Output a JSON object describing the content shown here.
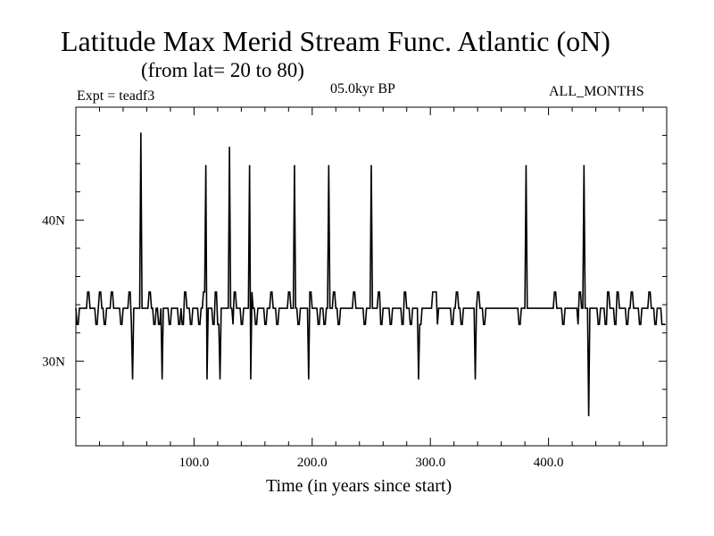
{
  "chart_data": {
    "type": "line",
    "title": "Latitude Max Merid Stream Func. Atlantic (oN)",
    "subtitle": "(from lat= 20 to 80)",
    "experiment": "Expt = teadf3",
    "period": "05.0kyr BP",
    "months": "ALL_MONTHS",
    "xlabel": "Time (in years since start)",
    "ylabel": "",
    "xlim": [
      0,
      500
    ],
    "ylim": [
      24.0,
      48.0
    ],
    "x_ticks": [
      100,
      200,
      300,
      400
    ],
    "x_tick_labels": [
      "100.0",
      "200.0",
      "300.0",
      "400.0"
    ],
    "y_ticks": [
      30,
      40
    ],
    "y_tick_labels": [
      "30N",
      "40N"
    ],
    "baseline": 33.75,
    "low_level": 32.6,
    "high_level": 34.9,
    "low_segments": [
      [
        1,
        2
      ],
      [
        10,
        11
      ],
      [
        17,
        18
      ],
      [
        24,
        25
      ],
      [
        38,
        39
      ],
      [
        47,
        48
      ],
      [
        66,
        67
      ],
      [
        70,
        71
      ],
      [
        79,
        80
      ],
      [
        87,
        88
      ],
      [
        90,
        91
      ],
      [
        97,
        98
      ],
      [
        104,
        105
      ],
      [
        116,
        117
      ],
      [
        120,
        121
      ],
      [
        133,
        134
      ],
      [
        140,
        141
      ],
      [
        152,
        153
      ],
      [
        160,
        161
      ],
      [
        170,
        171
      ],
      [
        180,
        181
      ],
      [
        188,
        189
      ],
      [
        205,
        206
      ],
      [
        210,
        211
      ],
      [
        222,
        223
      ],
      [
        235,
        236
      ],
      [
        244,
        245
      ],
      [
        258,
        259
      ],
      [
        266,
        267
      ],
      [
        276,
        277
      ],
      [
        283,
        284
      ],
      [
        291,
        292
      ],
      [
        305,
        306
      ],
      [
        318,
        319
      ],
      [
        326,
        327
      ],
      [
        345,
        346
      ],
      [
        375,
        376
      ],
      [
        412,
        413
      ],
      [
        425,
        426
      ],
      [
        442,
        443
      ],
      [
        448,
        449
      ],
      [
        456,
        457
      ],
      [
        466,
        467
      ],
      [
        477,
        478
      ],
      [
        490,
        491
      ],
      [
        496,
        499
      ]
    ],
    "high_segments": [
      [
        10,
        11
      ],
      [
        20,
        21
      ],
      [
        30,
        31
      ],
      [
        45,
        46
      ],
      [
        62,
        63
      ],
      [
        92,
        93
      ],
      [
        108,
        109
      ],
      [
        118,
        119
      ],
      [
        134,
        135
      ],
      [
        148,
        149
      ],
      [
        165,
        166
      ],
      [
        180,
        181
      ],
      [
        198,
        199
      ],
      [
        218,
        219
      ],
      [
        235,
        236
      ],
      [
        256,
        257
      ],
      [
        278,
        279
      ],
      [
        302,
        303
      ],
      [
        304,
        305
      ],
      [
        322,
        323
      ],
      [
        340,
        341
      ],
      [
        405,
        406
      ],
      [
        426,
        427
      ],
      [
        450,
        451
      ],
      [
        458,
        459
      ],
      [
        470,
        471
      ],
      [
        485,
        486
      ]
    ],
    "spikes": [
      {
        "x": 55,
        "y": 46.2
      },
      {
        "x": 110,
        "y": 43.9
      },
      {
        "x": 130,
        "y": 45.2
      },
      {
        "x": 147,
        "y": 43.9
      },
      {
        "x": 185,
        "y": 43.9
      },
      {
        "x": 214,
        "y": 43.9
      },
      {
        "x": 250,
        "y": 43.9
      },
      {
        "x": 381,
        "y": 43.9
      },
      {
        "x": 430,
        "y": 43.9
      },
      {
        "x": 48,
        "y": 28.7
      },
      {
        "x": 73,
        "y": 28.7
      },
      {
        "x": 111,
        "y": 28.7
      },
      {
        "x": 122,
        "y": 28.7
      },
      {
        "x": 148,
        "y": 28.7
      },
      {
        "x": 197,
        "y": 28.7
      },
      {
        "x": 290,
        "y": 28.7
      },
      {
        "x": 338,
        "y": 28.7
      },
      {
        "x": 434,
        "y": 26.1
      }
    ]
  }
}
